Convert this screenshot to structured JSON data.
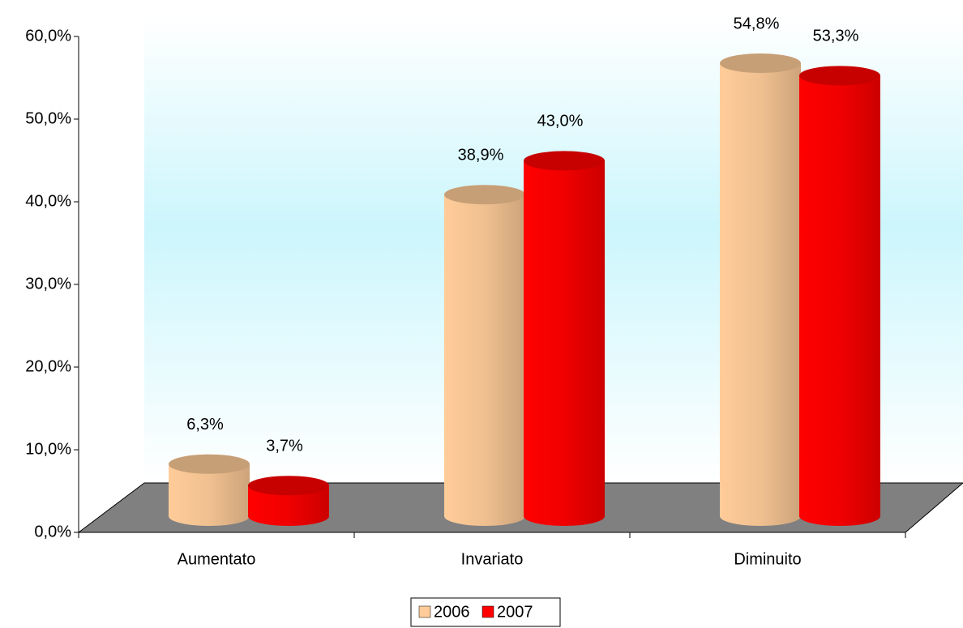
{
  "chart_data": {
    "type": "bar",
    "categories": [
      "Aumentato",
      "Invariato",
      "Diminuito"
    ],
    "series": [
      {
        "name": "2006",
        "color": "#ffcc99",
        "values": [
          6.3,
          38.9,
          54.8
        ],
        "value_labels": [
          "6,3%",
          "38,9%",
          "54,8%"
        ]
      },
      {
        "name": "2007",
        "color": "#ff0000",
        "values": [
          3.7,
          43.0,
          53.3
        ],
        "value_labels": [
          "3,7%",
          "43,0%",
          "53,3%"
        ]
      }
    ],
    "ylim": [
      0,
      60
    ],
    "yticks": [
      {
        "value": 0,
        "label": "0,0%"
      },
      {
        "value": 10,
        "label": "10,0%"
      },
      {
        "value": 20,
        "label": "20,0%"
      },
      {
        "value": 30,
        "label": "30,0%"
      },
      {
        "value": 40,
        "label": "40,0%"
      },
      {
        "value": 50,
        "label": "50,0%"
      },
      {
        "value": 60,
        "label": "60,0%"
      }
    ],
    "legend": "bottom"
  }
}
